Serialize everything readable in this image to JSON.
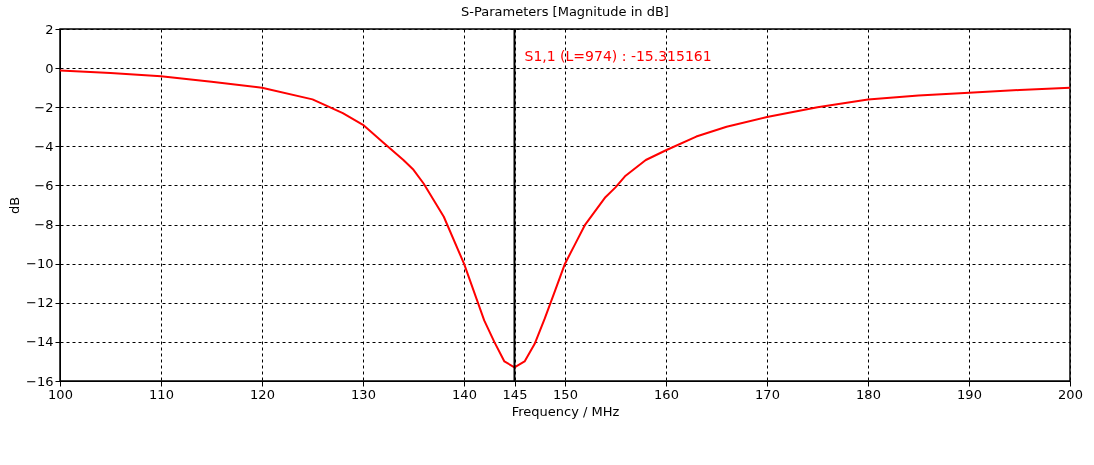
{
  "chart_data": {
    "type": "line",
    "title": "S-Parameters [Magnitude in dB]",
    "xlabel": "Frequency / MHz",
    "ylabel": "dB",
    "x": [
      100,
      105,
      110,
      115,
      120,
      125,
      128,
      130,
      132,
      134,
      135,
      136,
      138,
      140,
      142,
      143,
      144,
      145,
      146,
      147,
      148,
      149,
      150,
      151,
      152,
      154,
      155,
      156,
      158,
      160,
      163,
      166,
      170,
      175,
      180,
      185,
      190,
      195,
      200
    ],
    "series": [
      {
        "color": "#ff0000",
        "values": [
          -0.12,
          -0.25,
          -0.42,
          -0.7,
          -1.0,
          -1.6,
          -2.3,
          -2.9,
          -3.8,
          -4.7,
          -5.2,
          -5.9,
          -7.6,
          -10.0,
          -12.9,
          -14.0,
          -15.0,
          -15.3,
          -15.0,
          -14.1,
          -12.8,
          -11.4,
          -10.0,
          -9.0,
          -8.0,
          -6.6,
          -6.1,
          -5.5,
          -4.7,
          -4.2,
          -3.5,
          -3.0,
          -2.5,
          -2.0,
          -1.6,
          -1.4,
          -1.26,
          -1.12,
          -1.0
        ]
      }
    ],
    "xlim": [
      100,
      200
    ],
    "xticks": [
      100,
      110,
      120,
      130,
      140,
      145,
      150,
      160,
      170,
      180,
      190,
      200
    ],
    "ylim": [
      -16,
      2
    ],
    "yticks": [
      -16,
      -14,
      -12,
      -10,
      -8,
      -6,
      -4,
      -2,
      0,
      2
    ],
    "grid": true,
    "line_style": "solid",
    "marker": "none",
    "ref_lines": [
      {
        "axis": "x",
        "value": 145,
        "color": "#000000"
      }
    ],
    "annotations": [
      "S1,1 (L=974) : -15.315161"
    ]
  }
}
